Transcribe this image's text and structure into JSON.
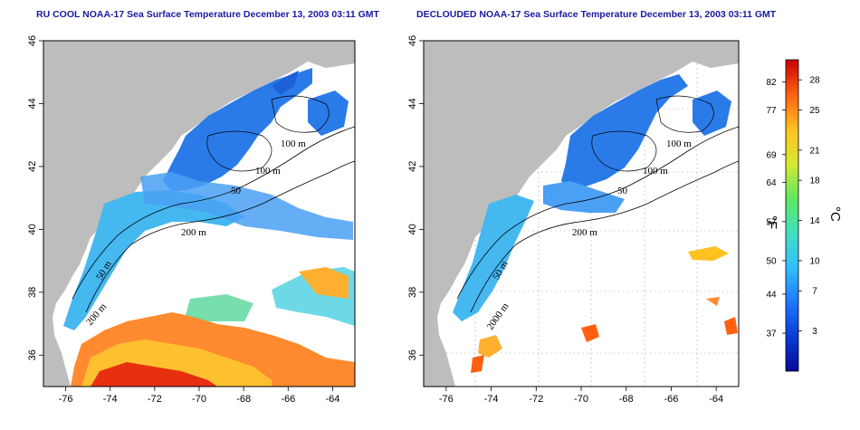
{
  "panels": [
    {
      "title": "RU COOL NOAA-17 Sea Surface Temperature December 13, 2003 03:11 GMT",
      "contour_labels": [
        "100 m",
        "100 m",
        "50",
        "200 m",
        "50 m",
        "200 m"
      ]
    },
    {
      "title": "DECLOUDED NOAA-17 Sea Surface Temperature December 13, 2003 03:11 GMT",
      "contour_labels": [
        "100 m",
        "100 m",
        "50",
        "200 m",
        "50 m",
        "2000 m"
      ]
    }
  ],
  "axes": {
    "lon_ticks": [
      "-76",
      "-74",
      "-72",
      "-70",
      "-68",
      "-66",
      "-64"
    ],
    "lat_ticks": [
      "36",
      "38",
      "40",
      "42",
      "44",
      "46"
    ]
  },
  "colorbar": {
    "fahrenheit_ticks": [
      "82",
      "77",
      "69",
      "64",
      "57",
      "50",
      "44",
      "37"
    ],
    "celsius_ticks": [
      "28",
      "25",
      "21",
      "18",
      "14",
      "10",
      "7",
      "3"
    ],
    "fahrenheit_unit": "°F",
    "celsius_unit": "°C",
    "colors": [
      "#08089a",
      "#0a3cd8",
      "#1e78ff",
      "#30c0ff",
      "#40e0c0",
      "#60e860",
      "#d8e830",
      "#ffc020",
      "#ff6010",
      "#c80000"
    ]
  },
  "colors": {
    "land": "#bdbdbd",
    "ocean_no_data": "#ffffff",
    "cold_water": "#2a7be8",
    "shelf_water": "#45b8f0",
    "warm_water": "#ff7020"
  }
}
